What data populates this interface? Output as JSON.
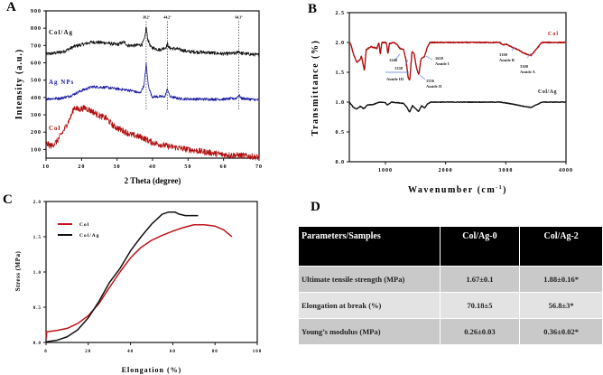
{
  "panels": {
    "a": "A",
    "b": "B",
    "c": "C",
    "d": "D"
  },
  "chart_data": [
    {
      "type": "line",
      "title": "",
      "xlabel": "2 Theta (degree)",
      "ylabel": "Intensity (a.u.)",
      "xlim": [
        10,
        70
      ],
      "ylim": [
        50,
        900
      ],
      "xticks": [
        10,
        20,
        30,
        40,
        50,
        60,
        70
      ],
      "yticks": [
        100,
        200,
        300,
        400,
        500,
        600,
        700,
        800,
        900
      ],
      "peak_lines": [
        {
          "x": 38.2,
          "label": "38.2°"
        },
        {
          "x": 44.2,
          "label": "44.2°"
        },
        {
          "x": 64.3,
          "label": "64.3°"
        }
      ],
      "series": [
        {
          "name": "Col/Ag",
          "color": "#111111",
          "noise": 10,
          "points": [
            [
              10,
              650
            ],
            [
              12,
              655
            ],
            [
              15,
              665
            ],
            [
              18,
              695
            ],
            [
              20,
              705
            ],
            [
              23,
              720
            ],
            [
              27,
              715
            ],
            [
              30,
              705
            ],
            [
              32,
              720
            ],
            [
              33,
              700
            ],
            [
              35,
              700
            ],
            [
              37,
              705
            ],
            [
              37.8,
              740
            ],
            [
              38.2,
              810
            ],
            [
              38.6,
              740
            ],
            [
              39.5,
              690
            ],
            [
              42,
              675
            ],
            [
              43.8,
              690
            ],
            [
              44.2,
              710
            ],
            [
              44.7,
              685
            ],
            [
              47,
              680
            ],
            [
              50,
              665
            ],
            [
              55,
              660
            ],
            [
              60,
              652
            ],
            [
              63.5,
              655
            ],
            [
              64.3,
              667
            ],
            [
              65,
              655
            ],
            [
              70,
              645
            ]
          ]
        },
        {
          "name": "Ag NPs",
          "color": "#1a1aa0",
          "noise": 8,
          "points": [
            [
              10,
              392
            ],
            [
              14,
              395
            ],
            [
              17,
              410
            ],
            [
              20,
              440
            ],
            [
              23,
              462
            ],
            [
              27,
              458
            ],
            [
              30,
              450
            ],
            [
              34,
              440
            ],
            [
              36.5,
              425
            ],
            [
              37.6,
              470
            ],
            [
              38.2,
              595
            ],
            [
              38.8,
              470
            ],
            [
              39.8,
              405
            ],
            [
              43.5,
              405
            ],
            [
              44.2,
              450
            ],
            [
              44.9,
              405
            ],
            [
              48,
              392
            ],
            [
              55,
              390
            ],
            [
              60,
              390
            ],
            [
              63.6,
              395
            ],
            [
              64.3,
              415
            ],
            [
              65,
              395
            ],
            [
              70,
              385
            ]
          ]
        },
        {
          "name": "Col",
          "color": "#b01010",
          "noise": 18,
          "points": [
            [
              10,
              135
            ],
            [
              11.5,
              120
            ],
            [
              13,
              145
            ],
            [
              15,
              210
            ],
            [
              17,
              290
            ],
            [
              18,
              345
            ],
            [
              19,
              330
            ],
            [
              21,
              340
            ],
            [
              23,
              320
            ],
            [
              25,
              295
            ],
            [
              27,
              280
            ],
            [
              29,
              235
            ],
            [
              31,
              215
            ],
            [
              34,
              185
            ],
            [
              37,
              170
            ],
            [
              40,
              140
            ],
            [
              44,
              120
            ],
            [
              47,
              110
            ],
            [
              50,
              100
            ],
            [
              55,
              85
            ],
            [
              60,
              70
            ],
            [
              65,
              65
            ],
            [
              70,
              55
            ]
          ]
        }
      ]
    },
    {
      "type": "line",
      "title": "",
      "xlabel": "Wavenumber (cm",
      "xlabel_sup": "-1",
      "xlabel_close": ")",
      "ylabel": "Transmittance (%)",
      "xlim": [
        400,
        4000
      ],
      "ylim": [
        0,
        2.5
      ],
      "xticks": [
        1000,
        2000,
        3000,
        4000
      ],
      "yticks": [
        "0.0",
        "0.5",
        "1.0",
        "1.5",
        "2.0",
        "2.5"
      ],
      "annotations": [
        "1240",
        "1338",
        "Amide III",
        "1650",
        "Amide I",
        "1556",
        "Amide II",
        "3100",
        "Amide B",
        "3300",
        "Amide A"
      ],
      "series": [
        {
          "name": "Col",
          "color": "#b01010",
          "noise": 0.008,
          "points": [
            [
              400,
              2.0
            ],
            [
              430,
              1.95
            ],
            [
              470,
              1.8
            ],
            [
              520,
              1.67
            ],
            [
              570,
              1.7
            ],
            [
              600,
              1.77
            ],
            [
              625,
              1.66
            ],
            [
              650,
              1.52
            ],
            [
              680,
              1.88
            ],
            [
              760,
              1.93
            ],
            [
              860,
              1.9
            ],
            [
              890,
              2.0
            ],
            [
              915,
              1.8
            ],
            [
              940,
              2.0
            ],
            [
              1000,
              2.0
            ],
            [
              1020,
              1.98
            ],
            [
              1040,
              1.8
            ],
            [
              1065,
              1.98
            ],
            [
              1140,
              2.0
            ],
            [
              1200,
              1.96
            ],
            [
              1240,
              1.9
            ],
            [
              1300,
              1.88
            ],
            [
              1340,
              1.72
            ],
            [
              1380,
              1.4
            ],
            [
              1405,
              1.37
            ],
            [
              1440,
              1.84
            ],
            [
              1475,
              1.82
            ],
            [
              1520,
              1.55
            ],
            [
              1556,
              1.46
            ],
            [
              1590,
              1.72
            ],
            [
              1650,
              1.77
            ],
            [
              1700,
              1.93
            ],
            [
              1740,
              2.0
            ],
            [
              2900,
              2.0
            ],
            [
              2950,
              1.96
            ],
            [
              3020,
              1.97
            ],
            [
              3100,
              1.92
            ],
            [
              3200,
              1.88
            ],
            [
              3300,
              1.82
            ],
            [
              3420,
              1.78
            ],
            [
              3500,
              1.88
            ],
            [
              3600,
              2.0
            ],
            [
              4000,
              2.0
            ]
          ]
        },
        {
          "name": "Col/Ag",
          "color": "#111111",
          "noise": 0.005,
          "points": [
            [
              400,
              1.0
            ],
            [
              460,
              0.92
            ],
            [
              520,
              0.88
            ],
            [
              580,
              0.93
            ],
            [
              640,
              0.89
            ],
            [
              700,
              0.95
            ],
            [
              800,
              0.96
            ],
            [
              900,
              1.0
            ],
            [
              1000,
              0.99
            ],
            [
              1030,
              0.95
            ],
            [
              1100,
              1.0
            ],
            [
              1300,
              0.98
            ],
            [
              1360,
              0.91
            ],
            [
              1400,
              0.83
            ],
            [
              1450,
              0.94
            ],
            [
              1500,
              0.89
            ],
            [
              1550,
              0.84
            ],
            [
              1600,
              0.94
            ],
            [
              1650,
              0.9
            ],
            [
              1700,
              0.97
            ],
            [
              1750,
              1.0
            ],
            [
              2900,
              1.0
            ],
            [
              3100,
              0.97
            ],
            [
              3300,
              0.93
            ],
            [
              3420,
              0.91
            ],
            [
              3520,
              0.96
            ],
            [
              3600,
              1.0
            ],
            [
              4000,
              1.0
            ]
          ]
        }
      ]
    },
    {
      "type": "line",
      "title": "",
      "xlabel": "Elongation (%)",
      "ylabel": "Stress (MPa)",
      "xlim": [
        0,
        100
      ],
      "ylim": [
        0,
        2.0
      ],
      "xticks": [
        0,
        20,
        40,
        60,
        80,
        100
      ],
      "yticks": [
        "0.0",
        "0.5",
        "1.0",
        "1.5",
        "2.0"
      ],
      "legend": "top-left",
      "series": [
        {
          "name": "Col",
          "color": "#c0141c",
          "points": [
            [
              0,
              0.05
            ],
            [
              0.3,
              0.15
            ],
            [
              5,
              0.17
            ],
            [
              10,
              0.2
            ],
            [
              15,
              0.27
            ],
            [
              20,
              0.38
            ],
            [
              25,
              0.55
            ],
            [
              30,
              0.78
            ],
            [
              35,
              1.0
            ],
            [
              40,
              1.2
            ],
            [
              45,
              1.35
            ],
            [
              50,
              1.45
            ],
            [
              55,
              1.52
            ],
            [
              60,
              1.58
            ],
            [
              65,
              1.63
            ],
            [
              70,
              1.67
            ],
            [
              75,
              1.67
            ],
            [
              80,
              1.65
            ],
            [
              84,
              1.6
            ],
            [
              88,
              1.5
            ]
          ]
        },
        {
          "name": "Col/Ag",
          "color": "#111111",
          "points": [
            [
              0,
              0.01
            ],
            [
              5,
              0.03
            ],
            [
              10,
              0.08
            ],
            [
              15,
              0.18
            ],
            [
              20,
              0.35
            ],
            [
              25,
              0.58
            ],
            [
              30,
              0.85
            ],
            [
              35,
              1.05
            ],
            [
              40,
              1.3
            ],
            [
              45,
              1.5
            ],
            [
              50,
              1.68
            ],
            [
              55,
              1.82
            ],
            [
              58,
              1.85
            ],
            [
              61,
              1.85
            ],
            [
              63,
              1.82
            ],
            [
              66,
              1.8
            ],
            [
              72,
              1.8
            ]
          ]
        }
      ]
    },
    {
      "type": "table",
      "headers": [
        "Parameters/Samples",
        "Col/Ag-0",
        "Col/Ag-2"
      ],
      "rows": [
        [
          "Ultimate tensile strength (MPa)",
          "1.67±0.1",
          "1.88±0.16*"
        ],
        [
          "Elongation at break (%)",
          "70.18±5",
          "56.8±3*"
        ],
        [
          "Young’s modulus (MPa)",
          "0.26±0.03",
          "0.36±0.02*"
        ]
      ]
    }
  ]
}
